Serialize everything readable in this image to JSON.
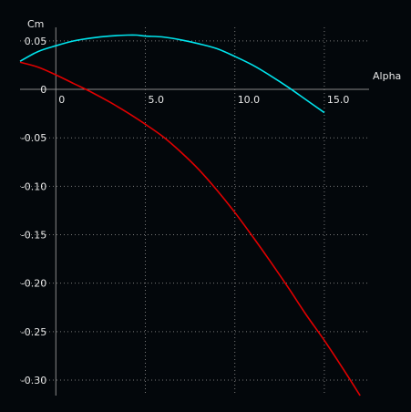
{
  "chart_data": {
    "type": "line",
    "xlabel": "Alpha",
    "ylabel": "Cm",
    "xlim": [
      -2,
      17.5
    ],
    "ylim": [
      -0.316,
      0.064
    ],
    "x_ticks": [
      0,
      5,
      10,
      15
    ],
    "x_tick_labels": [
      "0",
      "5.0",
      "10.0",
      "15.0"
    ],
    "y_ticks": [
      0.05,
      0,
      -0.05,
      -0.1,
      -0.15,
      -0.2,
      -0.25,
      -0.3
    ],
    "y_tick_labels": [
      "0.05",
      "0",
      "-0.05",
      "-0.10",
      "-0.15",
      "-0.20",
      "-0.25",
      "-0.30"
    ],
    "grid": true,
    "series": [
      {
        "color": "#00e5ee",
        "x": [
          -2,
          -1,
          0,
          1,
          2,
          3,
          4,
          4.5,
          5,
          6,
          7,
          8,
          9,
          10,
          11,
          12,
          13,
          14,
          15
        ],
        "y": [
          0.029,
          0.039,
          0.045,
          0.05,
          0.053,
          0.055,
          0.056,
          0.056,
          0.055,
          0.054,
          0.051,
          0.047,
          0.042,
          0.034,
          0.025,
          0.014,
          0.002,
          -0.011,
          -0.024
        ]
      },
      {
        "color": "#e00000",
        "x": [
          -2,
          -1,
          0,
          1,
          2,
          3,
          4,
          5,
          6,
          7,
          8,
          9,
          10,
          11,
          12,
          13,
          14,
          15,
          16,
          17
        ],
        "y": [
          0.028,
          0.023,
          0.015,
          0.006,
          -0.003,
          -0.013,
          -0.024,
          -0.036,
          -0.049,
          -0.065,
          -0.083,
          -0.104,
          -0.127,
          -0.152,
          -0.178,
          -0.205,
          -0.233,
          -0.259,
          -0.287,
          -0.316
        ]
      }
    ]
  }
}
